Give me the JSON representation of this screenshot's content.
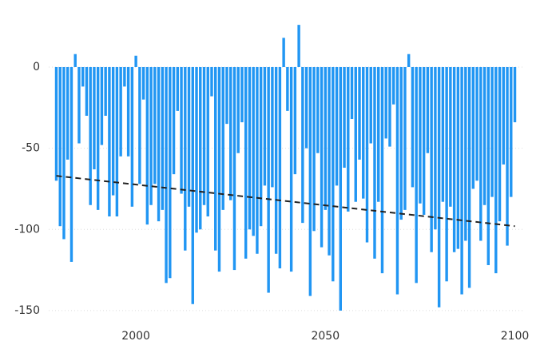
{
  "chart_data": {
    "type": "bar",
    "x": [
      1979,
      1980,
      1981,
      1982,
      1983,
      1984,
      1985,
      1986,
      1987,
      1988,
      1989,
      1990,
      1991,
      1992,
      1993,
      1994,
      1995,
      1996,
      1997,
      1998,
      1999,
      2000,
      2001,
      2002,
      2003,
      2004,
      2005,
      2006,
      2007,
      2008,
      2009,
      2010,
      2011,
      2012,
      2013,
      2014,
      2015,
      2016,
      2017,
      2018,
      2019,
      2020,
      2021,
      2022,
      2023,
      2024,
      2025,
      2026,
      2027,
      2028,
      2029,
      2030,
      2031,
      2032,
      2033,
      2034,
      2035,
      2036,
      2037,
      2038,
      2039,
      2040,
      2041,
      2042,
      2043,
      2044,
      2045,
      2046,
      2047,
      2048,
      2049,
      2050,
      2051,
      2052,
      2053,
      2054,
      2055,
      2056,
      2057,
      2058,
      2059,
      2060,
      2061,
      2062,
      2063,
      2064,
      2065,
      2066,
      2067,
      2068,
      2069,
      2070,
      2071,
      2072,
      2073,
      2074,
      2075,
      2076,
      2077,
      2078,
      2079,
      2080,
      2081,
      2082,
      2083,
      2084,
      2085,
      2086,
      2087,
      2088,
      2089,
      2090,
      2091,
      2092,
      2093,
      2094,
      2095,
      2096,
      2097,
      2098,
      2099,
      2100
    ],
    "values": [
      -70,
      -98,
      -106,
      -57,
      -120,
      8,
      -47,
      -12,
      -30,
      -85,
      -63,
      -88,
      -48,
      -30,
      -92,
      -79,
      -92,
      -55,
      -12,
      -55,
      -86,
      7,
      -72,
      -20,
      -97,
      -85,
      -72,
      -95,
      -88,
      -133,
      -130,
      -66,
      -27,
      -78,
      -113,
      -86,
      -146,
      -102,
      -100,
      -85,
      -92,
      -18,
      -113,
      -126,
      -88,
      -35,
      -82,
      -125,
      -53,
      -34,
      -118,
      -100,
      -104,
      -115,
      -98,
      -73,
      -139,
      -74,
      -115,
      -124,
      18,
      -27,
      -126,
      -66,
      26,
      -96,
      -50,
      -141,
      -101,
      -53,
      -111,
      -88,
      -116,
      -132,
      -73,
      -150,
      -62,
      -89,
      -32,
      -83,
      -57,
      -81,
      -108,
      -47,
      -118,
      -83,
      -127,
      -44,
      -49,
      -23,
      -140,
      -94,
      -88,
      8,
      -74,
      -133,
      -84,
      -91,
      -53,
      -114,
      -100,
      -148,
      -83,
      -132,
      -86,
      -114,
      -112,
      -140,
      -107,
      -136,
      -75,
      -70,
      -107,
      -85,
      -122,
      -80,
      -127,
      -95,
      -60,
      -110,
      -80,
      -34
    ],
    "color": "#2196f3",
    "trend": {
      "x": [
        1979,
        2100
      ],
      "values": [
        -67,
        -98
      ],
      "color": "#222222"
    },
    "xlim": [
      1977,
      2102
    ],
    "xticks": [
      2000,
      2050,
      2100
    ],
    "ylim": [
      -153,
      30
    ],
    "yticks": [
      0,
      -50,
      -100,
      -150
    ],
    "grid": true
  }
}
